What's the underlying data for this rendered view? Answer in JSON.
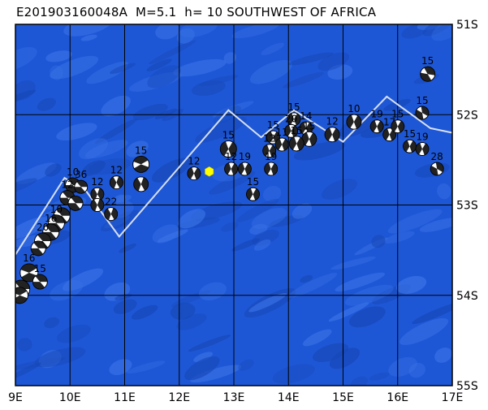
{
  "title": "E201903160048A  M=5.1  h= 10 SOUTHWEST OF AFRICA",
  "colors": {
    "ocean": "#1e57d6",
    "ocean_light": "#3a72e6",
    "ocean_dark": "#1748b8",
    "grid": "#000000",
    "ridge": "#d8e0f0",
    "event": "#ffff00",
    "mech_dark": "#222222",
    "mech_light": "#ffffff"
  },
  "map": {
    "lon_range": [
      9,
      17
    ],
    "lat_range": [
      -55,
      -51
    ],
    "lon_ticks": [
      {
        "value": 9,
        "label": "9E"
      },
      {
        "value": 10,
        "label": "10E"
      },
      {
        "value": 11,
        "label": "11E"
      },
      {
        "value": 12,
        "label": "12E"
      },
      {
        "value": 13,
        "label": "13E"
      },
      {
        "value": 14,
        "label": "14E"
      },
      {
        "value": 15,
        "label": "15E"
      },
      {
        "value": 16,
        "label": "16E"
      },
      {
        "value": 17,
        "label": "17E"
      }
    ],
    "lat_ticks": [
      {
        "value": -51,
        "label": "51S"
      },
      {
        "value": -52,
        "label": "52S"
      },
      {
        "value": -53,
        "label": "53S"
      },
      {
        "value": -54,
        "label": "54S"
      },
      {
        "value": -55,
        "label": "55S"
      }
    ],
    "ridge": [
      [
        9.0,
        -53.55
      ],
      [
        9.9,
        -52.7
      ],
      [
        10.3,
        -52.85
      ],
      [
        10.9,
        -53.35
      ],
      [
        12.9,
        -51.95
      ],
      [
        13.5,
        -52.25
      ],
      [
        14.1,
        -51.95
      ],
      [
        15.0,
        -52.3
      ],
      [
        15.8,
        -51.8
      ],
      [
        16.6,
        -52.15
      ],
      [
        17.0,
        -52.2
      ]
    ],
    "event": {
      "lon": 12.55,
      "lat": -52.63
    }
  },
  "mechanisms": [
    {
      "lon": 16.55,
      "lat": -51.55,
      "depth": "15",
      "r": 9,
      "rot": 40
    },
    {
      "lon": 16.45,
      "lat": -51.98,
      "depth": "15",
      "r": 8,
      "rot": 60
    },
    {
      "lon": 15.2,
      "lat": -52.08,
      "depth": "10",
      "r": 9,
      "rot": 100
    },
    {
      "lon": 15.62,
      "lat": -52.13,
      "depth": "19",
      "r": 8,
      "rot": 100
    },
    {
      "lon": 15.85,
      "lat": -52.22,
      "depth": "17",
      "r": 8,
      "rot": 100
    },
    {
      "lon": 16.0,
      "lat": -52.13,
      "depth": "15",
      "r": 8,
      "rot": 100
    },
    {
      "lon": 16.22,
      "lat": -52.35,
      "depth": "15",
      "r": 8,
      "rot": 100
    },
    {
      "lon": 16.45,
      "lat": -52.38,
      "depth": "19",
      "r": 8,
      "rot": 100
    },
    {
      "lon": 16.72,
      "lat": -52.6,
      "depth": "28",
      "r": 8,
      "rot": 60
    },
    {
      "lon": 14.8,
      "lat": -52.22,
      "depth": "12",
      "r": 9,
      "rot": 100
    },
    {
      "lon": 14.1,
      "lat": -52.05,
      "depth": "15",
      "r": 8,
      "rot": 100
    },
    {
      "lon": 14.32,
      "lat": -52.15,
      "depth": "14",
      "r": 8,
      "rot": 100
    },
    {
      "lon": 14.38,
      "lat": -52.27,
      "depth": "15",
      "r": 9,
      "rot": 100
    },
    {
      "lon": 14.05,
      "lat": -52.18,
      "depth": "20",
      "r": 8,
      "rot": 100
    },
    {
      "lon": 14.15,
      "lat": -52.32,
      "depth": "15",
      "r": 9,
      "rot": 100
    },
    {
      "lon": 13.72,
      "lat": -52.25,
      "depth": "15",
      "r": 8,
      "rot": 100
    },
    {
      "lon": 13.88,
      "lat": -52.33,
      "depth": "11",
      "r": 8,
      "rot": 100
    },
    {
      "lon": 13.65,
      "lat": -52.4,
      "depth": "12",
      "r": 8,
      "rot": 100
    },
    {
      "lon": 12.9,
      "lat": -52.38,
      "depth": "15",
      "r": 10,
      "rot": 100
    },
    {
      "lon": 13.2,
      "lat": -52.6,
      "depth": "19",
      "r": 8,
      "rot": 100
    },
    {
      "lon": 12.95,
      "lat": -52.6,
      "depth": "12",
      "r": 8,
      "rot": 100
    },
    {
      "lon": 13.68,
      "lat": -52.6,
      "depth": "19",
      "r": 8,
      "rot": 100
    },
    {
      "lon": 13.35,
      "lat": -52.88,
      "depth": "15",
      "r": 8,
      "rot": 100
    },
    {
      "lon": 12.27,
      "lat": -52.65,
      "depth": "12",
      "r": 8,
      "rot": 100
    },
    {
      "lon": 11.3,
      "lat": -52.55,
      "depth": "15",
      "r": 10,
      "rot": 0
    },
    {
      "lon": 11.3,
      "lat": -52.77,
      "depth": "",
      "r": 9,
      "rot": 90
    },
    {
      "lon": 10.85,
      "lat": -52.75,
      "depth": "12",
      "r": 8,
      "rot": 90
    },
    {
      "lon": 10.5,
      "lat": -52.88,
      "depth": "12",
      "r": 8,
      "rot": 90
    },
    {
      "lon": 10.5,
      "lat": -53.0,
      "depth": "",
      "r": 8,
      "rot": 90
    },
    {
      "lon": 10.75,
      "lat": -53.1,
      "depth": "22",
      "r": 8,
      "rot": 90
    },
    {
      "lon": 10.05,
      "lat": -52.78,
      "depth": "10",
      "r": 9,
      "rot": 30
    },
    {
      "lon": 10.2,
      "lat": -52.8,
      "depth": "36",
      "r": 8,
      "rot": 30
    },
    {
      "lon": 9.95,
      "lat": -52.92,
      "depth": "12",
      "r": 9,
      "rot": 30
    },
    {
      "lon": 10.1,
      "lat": -52.98,
      "depth": "",
      "r": 9,
      "rot": 30
    },
    {
      "lon": 9.85,
      "lat": -53.12,
      "depth": "",
      "r": 10,
      "rot": 30
    },
    {
      "lon": 9.75,
      "lat": -53.2,
      "depth": "10",
      "r": 10,
      "rot": 30
    },
    {
      "lon": 9.65,
      "lat": -53.3,
      "depth": "16",
      "r": 10,
      "rot": 30
    },
    {
      "lon": 9.5,
      "lat": -53.4,
      "depth": "20",
      "r": 10,
      "rot": 30
    },
    {
      "lon": 9.42,
      "lat": -53.48,
      "depth": "",
      "r": 9,
      "rot": 30
    },
    {
      "lon": 9.25,
      "lat": -53.75,
      "depth": "16",
      "r": 11,
      "rot": 0
    },
    {
      "lon": 9.45,
      "lat": -53.85,
      "depth": "15",
      "r": 9,
      "rot": 30
    },
    {
      "lon": 9.1,
      "lat": -53.93,
      "depth": "",
      "r": 11,
      "rot": 30
    },
    {
      "lon": 9.08,
      "lat": -54.0,
      "depth": "",
      "r": 10,
      "rot": 0
    }
  ]
}
